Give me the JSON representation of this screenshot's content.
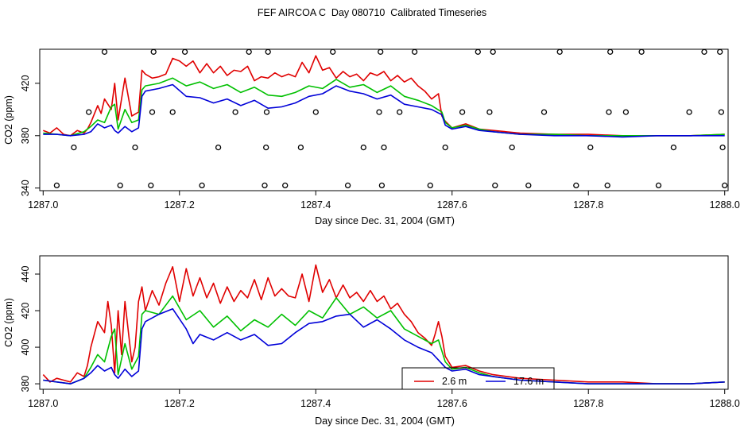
{
  "title": "FEF AIRCOA C  Day 080710  Calibrated Timeseries",
  "colors": {
    "red": "#e00000",
    "green": "#00c000",
    "blue": "#0000d8"
  },
  "chart_data": [
    {
      "type": "line",
      "xlabel": "Day since Dec. 31, 2004 (GMT)",
      "ylabel": "CO2 (ppm)",
      "xlim": [
        1286.995,
        1288.005
      ],
      "ylim": [
        338,
        446
      ],
      "xticks": [
        1287.0,
        1287.2,
        1287.4,
        1287.6,
        1287.8,
        1288.0
      ],
      "xtick_labels": [
        "1287.0",
        "1287.2",
        "1287.4",
        "1287.6",
        "1287.8",
        "1288.0"
      ],
      "yticks": [
        340,
        380,
        420
      ],
      "ytick_labels": [
        "340",
        "380",
        "420"
      ],
      "series": [
        {
          "name": "red",
          "color": "#e00000",
          "x": [
            1287.0,
            1287.01,
            1287.02,
            1287.03,
            1287.04,
            1287.05,
            1287.06,
            1287.065,
            1287.07,
            1287.08,
            1287.085,
            1287.09,
            1287.1,
            1287.105,
            1287.11,
            1287.12,
            1287.13,
            1287.14,
            1287.145,
            1287.15,
            1287.16,
            1287.17,
            1287.18,
            1287.19,
            1287.2,
            1287.21,
            1287.22,
            1287.23,
            1287.24,
            1287.25,
            1287.26,
            1287.27,
            1287.28,
            1287.29,
            1287.3,
            1287.31,
            1287.32,
            1287.33,
            1287.34,
            1287.35,
            1287.36,
            1287.37,
            1287.38,
            1287.39,
            1287.4,
            1287.41,
            1287.42,
            1287.43,
            1287.44,
            1287.45,
            1287.46,
            1287.47,
            1287.48,
            1287.49,
            1287.5,
            1287.51,
            1287.52,
            1287.53,
            1287.54,
            1287.55,
            1287.56,
            1287.57,
            1287.58,
            1287.585,
            1287.59,
            1287.6,
            1287.62,
            1287.64,
            1287.66,
            1287.7,
            1287.75,
            1287.8,
            1287.85,
            1287.9,
            1287.95,
            1288.0
          ],
          "y": [
            384,
            382,
            386,
            381,
            380,
            384,
            382,
            385,
            390,
            403,
            397,
            408,
            400,
            420,
            392,
            424,
            395,
            398,
            430,
            427,
            424,
            425,
            427,
            439,
            437,
            433,
            437,
            428,
            435,
            428,
            433,
            426,
            430,
            429,
            433,
            422,
            425,
            424,
            428,
            425,
            427,
            425,
            436,
            428,
            441,
            430,
            432,
            424,
            429,
            425,
            427,
            422,
            428,
            426,
            429,
            422,
            426,
            421,
            424,
            418,
            414,
            408,
            412,
            395,
            391,
            386,
            389,
            385,
            384,
            382,
            381,
            381,
            380,
            380,
            380,
            381
          ]
        },
        {
          "name": "green",
          "color": "#00c000",
          "x": [
            1287.0,
            1287.02,
            1287.04,
            1287.06,
            1287.07,
            1287.08,
            1287.09,
            1287.1,
            1287.105,
            1287.11,
            1287.12,
            1287.13,
            1287.14,
            1287.145,
            1287.15,
            1287.17,
            1287.19,
            1287.21,
            1287.23,
            1287.25,
            1287.27,
            1287.29,
            1287.31,
            1287.33,
            1287.35,
            1287.37,
            1287.39,
            1287.41,
            1287.43,
            1287.45,
            1287.47,
            1287.49,
            1287.51,
            1287.53,
            1287.55,
            1287.57,
            1287.585,
            1287.59,
            1287.6,
            1287.62,
            1287.64,
            1287.66,
            1287.7,
            1287.75,
            1287.8,
            1287.85,
            1287.9,
            1287.95,
            1288.0
          ],
          "y": [
            382,
            381,
            380,
            383,
            387,
            392,
            390,
            402,
            404,
            385,
            400,
            390,
            392,
            415,
            418,
            420,
            424,
            418,
            421,
            416,
            419,
            413,
            417,
            411,
            410,
            413,
            418,
            416,
            423,
            417,
            419,
            413,
            418,
            410,
            407,
            403,
            398,
            390,
            386,
            388,
            385,
            383,
            381,
            381,
            380,
            380,
            380,
            380,
            381
          ]
        },
        {
          "name": "blue",
          "color": "#0000d8",
          "x": [
            1287.0,
            1287.02,
            1287.04,
            1287.06,
            1287.07,
            1287.08,
            1287.09,
            1287.1,
            1287.105,
            1287.11,
            1287.12,
            1287.13,
            1287.14,
            1287.145,
            1287.15,
            1287.17,
            1287.19,
            1287.21,
            1287.23,
            1287.25,
            1287.27,
            1287.29,
            1287.31,
            1287.33,
            1287.35,
            1287.37,
            1287.39,
            1287.41,
            1287.43,
            1287.45,
            1287.47,
            1287.49,
            1287.51,
            1287.53,
            1287.55,
            1287.57,
            1287.585,
            1287.59,
            1287.6,
            1287.62,
            1287.64,
            1287.66,
            1287.7,
            1287.75,
            1287.8,
            1287.85,
            1287.9,
            1287.95,
            1288.0
          ],
          "y": [
            381,
            381,
            380,
            381,
            383,
            389,
            386,
            388,
            384,
            382,
            387,
            383,
            386,
            410,
            414,
            416,
            419,
            410,
            409,
            405,
            408,
            403,
            407,
            401,
            402,
            405,
            410,
            412,
            418,
            414,
            412,
            408,
            411,
            404,
            402,
            400,
            396,
            388,
            385,
            387,
            384,
            383,
            381,
            380,
            380,
            379,
            380,
            380,
            380
          ]
        }
      ],
      "flag_points": {
        "x": [
          1287.02,
          1287.045,
          1287.067,
          1287.09,
          1287.113,
          1287.135,
          1287.158,
          1287.16,
          1287.162,
          1287.19,
          1287.208,
          1287.233,
          1287.257,
          1287.282,
          1287.302,
          1287.325,
          1287.327,
          1287.328,
          1287.33,
          1287.355,
          1287.378,
          1287.4,
          1287.425,
          1287.447,
          1287.47,
          1287.493,
          1287.495,
          1287.497,
          1287.5,
          1287.523,
          1287.545,
          1287.568,
          1287.59,
          1287.615,
          1287.638,
          1287.655,
          1287.66,
          1287.663,
          1287.688,
          1287.712,
          1287.735,
          1287.758,
          1287.782,
          1287.803,
          1287.828,
          1287.83,
          1287.832,
          1287.855,
          1287.878,
          1287.903,
          1287.925,
          1287.948,
          1287.97,
          1287.993,
          1287.995,
          1287.997,
          1288.0
        ],
        "y": [
          342,
          371,
          398,
          444,
          342,
          371,
          342,
          398,
          444,
          398,
          444,
          342,
          371,
          398,
          444,
          342,
          371,
          398,
          444,
          342,
          371,
          398,
          444,
          342,
          371,
          398,
          444,
          342,
          371,
          398,
          444,
          342,
          371,
          398,
          444,
          398,
          444,
          342,
          371,
          342,
          398,
          444,
          342,
          371,
          342,
          398,
          444,
          398,
          444,
          342,
          371,
          398,
          444,
          444,
          398,
          371,
          342
        ]
      }
    },
    {
      "type": "line",
      "xlabel": "Day since Dec. 31, 2004 (GMT)",
      "ylabel": "CO2 (ppm)",
      "xlim": [
        1286.995,
        1288.005
      ],
      "ylim": [
        377,
        450
      ],
      "xticks": [
        1287.0,
        1287.2,
        1287.4,
        1287.6,
        1287.8,
        1288.0
      ],
      "xtick_labels": [
        "1287.0",
        "1287.2",
        "1287.4",
        "1287.6",
        "1287.8",
        "1288.0"
      ],
      "yticks": [
        380,
        400,
        420,
        440
      ],
      "ytick_labels": [
        "380",
        "400",
        "420",
        "440"
      ],
      "legend": {
        "position": "bottom-center",
        "entries": [
          {
            "label": "2.6 m",
            "color": "#e00000"
          },
          {
            "label": "17.6 m",
            "color": "#0000d8"
          }
        ]
      },
      "series": [
        {
          "name": "2.6 m",
          "color": "#e00000",
          "x": [
            1287.0,
            1287.01,
            1287.02,
            1287.03,
            1287.04,
            1287.05,
            1287.06,
            1287.065,
            1287.07,
            1287.08,
            1287.09,
            1287.095,
            1287.1,
            1287.105,
            1287.11,
            1287.115,
            1287.12,
            1287.13,
            1287.135,
            1287.14,
            1287.145,
            1287.15,
            1287.16,
            1287.17,
            1287.18,
            1287.19,
            1287.2,
            1287.21,
            1287.22,
            1287.23,
            1287.24,
            1287.25,
            1287.26,
            1287.27,
            1287.28,
            1287.29,
            1287.3,
            1287.31,
            1287.32,
            1287.33,
            1287.34,
            1287.35,
            1287.36,
            1287.37,
            1287.38,
            1287.39,
            1287.4,
            1287.41,
            1287.42,
            1287.43,
            1287.44,
            1287.45,
            1287.46,
            1287.47,
            1287.48,
            1287.49,
            1287.5,
            1287.51,
            1287.52,
            1287.53,
            1287.54,
            1287.55,
            1287.56,
            1287.57,
            1287.575,
            1287.58,
            1287.585,
            1287.59,
            1287.6,
            1287.62,
            1287.64,
            1287.66,
            1287.7,
            1287.75,
            1287.8,
            1287.85,
            1287.9,
            1287.95,
            1288.0
          ],
          "y": [
            385,
            381,
            383,
            382,
            381,
            386,
            384,
            390,
            400,
            414,
            408,
            425,
            412,
            386,
            420,
            396,
            425,
            392,
            400,
            425,
            433,
            420,
            431,
            423,
            435,
            444,
            425,
            443,
            428,
            438,
            427,
            435,
            424,
            433,
            425,
            431,
            427,
            437,
            426,
            438,
            428,
            432,
            428,
            427,
            440,
            425,
            445,
            430,
            437,
            427,
            434,
            427,
            430,
            425,
            431,
            425,
            428,
            421,
            424,
            418,
            414,
            408,
            405,
            401,
            407,
            414,
            406,
            395,
            389,
            390,
            387,
            385,
            383,
            382,
            381,
            381,
            380,
            380,
            381
          ]
        },
        {
          "name": "green",
          "color": "#00c000",
          "x": [
            1287.0,
            1287.02,
            1287.04,
            1287.06,
            1287.07,
            1287.08,
            1287.09,
            1287.1,
            1287.105,
            1287.11,
            1287.12,
            1287.13,
            1287.14,
            1287.145,
            1287.15,
            1287.17,
            1287.19,
            1287.21,
            1287.23,
            1287.25,
            1287.27,
            1287.29,
            1287.31,
            1287.33,
            1287.35,
            1287.37,
            1287.39,
            1287.41,
            1287.43,
            1287.45,
            1287.47,
            1287.49,
            1287.51,
            1287.53,
            1287.55,
            1287.57,
            1287.58,
            1287.59,
            1287.6,
            1287.62,
            1287.64,
            1287.66,
            1287.7,
            1287.75,
            1287.8,
            1287.85,
            1287.9,
            1287.95,
            1288.0
          ],
          "y": [
            382,
            381,
            380,
            383,
            389,
            396,
            392,
            406,
            410,
            385,
            402,
            388,
            395,
            418,
            420,
            418,
            428,
            415,
            420,
            411,
            417,
            409,
            415,
            411,
            418,
            412,
            420,
            416,
            427,
            418,
            422,
            416,
            420,
            410,
            406,
            402,
            404,
            392,
            388,
            389,
            386,
            384,
            382,
            381,
            380,
            380,
            380,
            380,
            381
          ]
        },
        {
          "name": "17.6 m",
          "color": "#0000d8",
          "x": [
            1287.0,
            1287.02,
            1287.04,
            1287.06,
            1287.07,
            1287.08,
            1287.09,
            1287.1,
            1287.105,
            1287.11,
            1287.12,
            1287.13,
            1287.14,
            1287.145,
            1287.15,
            1287.17,
            1287.19,
            1287.21,
            1287.22,
            1287.23,
            1287.25,
            1287.27,
            1287.29,
            1287.31,
            1287.33,
            1287.35,
            1287.37,
            1287.39,
            1287.41,
            1287.43,
            1287.45,
            1287.47,
            1287.49,
            1287.51,
            1287.53,
            1287.55,
            1287.57,
            1287.58,
            1287.59,
            1287.6,
            1287.62,
            1287.64,
            1287.66,
            1287.7,
            1287.75,
            1287.8,
            1287.85,
            1287.9,
            1287.95,
            1288.0
          ],
          "y": [
            382,
            381,
            380,
            383,
            386,
            390,
            387,
            389,
            385,
            383,
            388,
            384,
            387,
            410,
            414,
            418,
            421,
            410,
            402,
            407,
            404,
            408,
            404,
            407,
            401,
            402,
            408,
            413,
            414,
            417,
            418,
            411,
            415,
            410,
            404,
            400,
            397,
            393,
            389,
            387,
            388,
            385,
            384,
            382,
            381,
            380,
            380,
            380,
            380,
            381
          ]
        }
      ]
    }
  ]
}
